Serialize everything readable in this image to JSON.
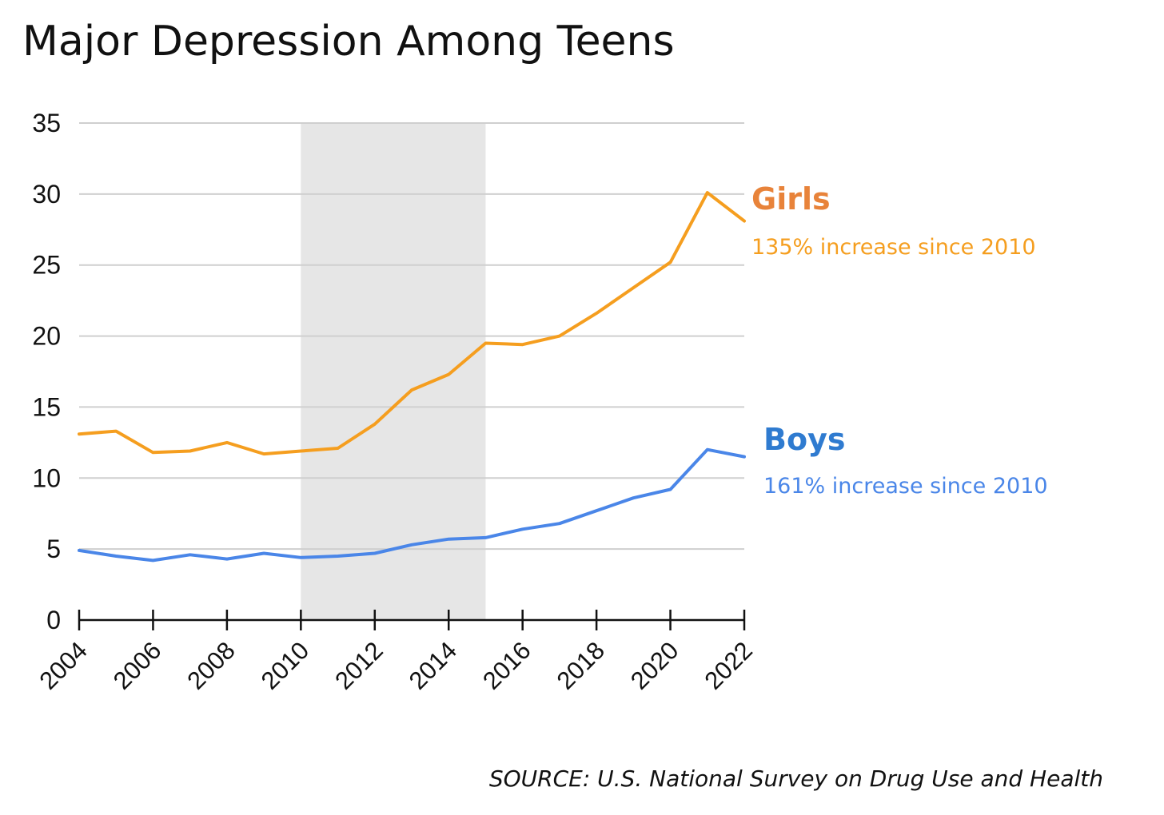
{
  "chart_data": {
    "type": "line",
    "title": "Major Depression Among Teens",
    "source": "SOURCE: U.S. National Survey on Drug Use and Health",
    "xlabel": "",
    "ylabel": "",
    "xlim": [
      2004,
      2022
    ],
    "ylim": [
      0,
      35
    ],
    "grid": true,
    "x_ticks": [
      "2004",
      "2006",
      "2008",
      "2010",
      "2012",
      "2014",
      "2016",
      "2018",
      "2020",
      "2022"
    ],
    "y_ticks": [
      "0",
      "5",
      "10",
      "15",
      "20",
      "25",
      "30",
      "35"
    ],
    "shaded_band": {
      "from": 2010,
      "to": 2015,
      "color": "#e6e6e6"
    },
    "x": [
      2004,
      2005,
      2006,
      2007,
      2008,
      2009,
      2010,
      2011,
      2012,
      2013,
      2014,
      2015,
      2016,
      2017,
      2018,
      2019,
      2020,
      2021,
      2022
    ],
    "series": [
      {
        "name": "Girls",
        "annotation": "135% increase since 2010",
        "color": "#f59e1f",
        "label_color": "#e8833a",
        "values": [
          13.1,
          13.3,
          11.8,
          11.9,
          12.5,
          11.7,
          11.9,
          12.1,
          13.8,
          16.2,
          17.3,
          19.5,
          19.4,
          20.0,
          21.6,
          23.4,
          25.2,
          30.1,
          28.1
        ]
      },
      {
        "name": "Boys",
        "annotation": "161% increase since 2010",
        "color": "#4a86e8",
        "label_color": "#2f7bd0",
        "values": [
          4.9,
          4.5,
          4.2,
          4.6,
          4.3,
          4.7,
          4.4,
          4.5,
          4.7,
          5.3,
          5.7,
          5.8,
          6.4,
          6.8,
          7.7,
          8.6,
          9.2,
          12.0,
          11.5
        ]
      }
    ]
  }
}
